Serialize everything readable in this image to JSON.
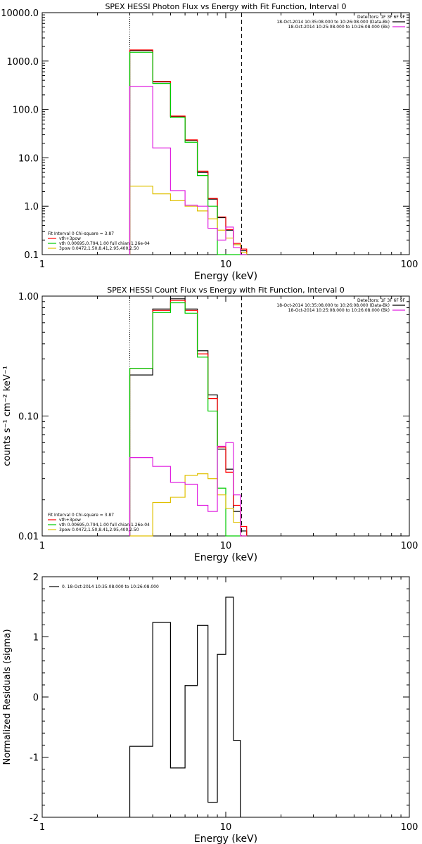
{
  "chart_data": [
    {
      "type": "line",
      "title": "SPEX HESSI Photon Flux vs Energy with Fit Function, Interval 0",
      "xlabel": "Energy (keV)",
      "ylabel": "",
      "x_scale": "log",
      "y_scale": "log",
      "xlim": [
        1,
        100
      ],
      "ylim": [
        0.1,
        10000
      ],
      "x_ticks": [
        1,
        10,
        100
      ],
      "x_tick_labels": [
        "1",
        "10",
        "100"
      ],
      "y_ticks": [
        0.1,
        1,
        10,
        100,
        1000,
        10000
      ],
      "y_tick_labels": [
        "0.1",
        "1.0",
        "10.0",
        "100.0",
        "1000.0",
        "10000.0"
      ],
      "bin_edges": [
        3.0,
        4.0,
        5.0,
        6.0,
        7.0,
        8.0,
        9.0,
        10.0,
        11.0,
        12.0,
        13.0
      ],
      "series": [
        {
          "name": "",
          "color": "#000000",
          "values": [
            1650,
            370,
            72,
            23,
            5.0,
            1.4,
            0.58,
            0.32,
            0.16,
            0.12
          ]
        },
        {
          "name": "vth+3pow",
          "color": "#ff0000",
          "values": [
            1700,
            380,
            73,
            23.5,
            5.3,
            1.45,
            0.6,
            0.33,
            0.17,
            0.13
          ]
        },
        {
          "name": "vth 0.00695,0.794,1.00  full chian 1.26e-04",
          "color": "#00cc00",
          "values": [
            1520,
            345,
            68,
            21,
            4.3,
            1.0,
            0.1,
            0.1,
            0.1,
            0.1
          ]
        },
        {
          "name": "3pow 0.0472,1.50,8.41,2.95,400,2.50",
          "color": "#e0c000",
          "values": [
            2.6,
            1.8,
            1.3,
            1.0,
            0.8,
            0.55,
            0.32,
            0.22,
            0.16,
            0.11
          ]
        },
        {
          "name": "",
          "color": "#e020e0",
          "values": [
            300,
            16,
            2.1,
            1.05,
            1.0,
            0.35,
            0.2,
            0.37,
            0.14,
            0.1
          ]
        }
      ],
      "vlines": [
        {
          "x": 3.0,
          "style": "dotted"
        },
        {
          "x": 12.2,
          "style": "dashed"
        }
      ],
      "legend_placement": "top-right",
      "legend_lines": [
        {
          "text": "Detectors: 1F 3F 6F 9F",
          "color": ""
        },
        {
          "text": "18-Oct-2014 10:35:08.000 to 10:26:08.000 (Data-Bk)",
          "color": "#000000"
        },
        {
          "text": "18-Oct-2014 10:25:08.000 to 10:26:08.000 (Bk)",
          "color": "#e020e0"
        }
      ],
      "fit_legend": [
        {
          "text": "Fit Interval 0   Chi-square = 3.87",
          "color": ""
        },
        {
          "text": "vth+3pow",
          "color": "#ff0000"
        },
        {
          "text": "vth 0.00695,0.794,1.00  full chian 1.26e-04",
          "color": "#00cc00"
        },
        {
          "text": "3pow 0.0472,1.50,8.41,2.95,400,2.50",
          "color": "#e0c000"
        }
      ]
    },
    {
      "type": "line",
      "title": "SPEX HESSI Count Flux vs Energy with Fit Function, Interval 0",
      "xlabel": "Energy (keV)",
      "ylabel": "counts s⁻¹ cm⁻² keV⁻¹",
      "x_scale": "log",
      "y_scale": "log",
      "xlim": [
        1,
        100
      ],
      "ylim": [
        0.01,
        1.0
      ],
      "x_ticks": [
        1,
        10,
        100
      ],
      "x_tick_labels": [
        "1",
        "10",
        "100"
      ],
      "y_ticks": [
        0.01,
        0.1,
        1.0
      ],
      "y_tick_labels": [
        "0.01",
        "0.10",
        "1.00"
      ],
      "bin_edges": [
        3.0,
        4.0,
        5.0,
        6.0,
        7.0,
        8.0,
        9.0,
        10.0,
        11.0,
        12.0,
        13.0
      ],
      "series": [
        {
          "name": "",
          "color": "#000000",
          "values": [
            0.22,
            0.78,
            0.95,
            0.78,
            0.35,
            0.15,
            0.053,
            0.036,
            0.016,
            0.011
          ]
        },
        {
          "name": "vth+3pow",
          "color": "#ff0000",
          "values": [
            0.25,
            0.76,
            0.92,
            0.76,
            0.33,
            0.14,
            0.055,
            0.034,
            0.018,
            0.012
          ]
        },
        {
          "name": "vth 0.00695,0.794,1.00  full chian 1.26e-04",
          "color": "#00cc00",
          "values": [
            0.25,
            0.73,
            0.88,
            0.72,
            0.31,
            0.11,
            0.025,
            0.01,
            0.01,
            0.01
          ]
        },
        {
          "name": "3pow 0.0472,1.50,8.41,2.95,400,2.50",
          "color": "#e0c000",
          "values": [
            0.01,
            0.019,
            0.021,
            0.032,
            0.033,
            0.03,
            0.022,
            0.017,
            0.013,
            0.01
          ]
        },
        {
          "name": "",
          "color": "#e020e0",
          "values": [
            0.045,
            0.038,
            0.028,
            0.027,
            0.018,
            0.016,
            0.056,
            0.06,
            0.022,
            0.01
          ]
        }
      ],
      "vlines": [
        {
          "x": 3.0,
          "style": "dotted"
        },
        {
          "x": 12.2,
          "style": "dashed"
        }
      ],
      "legend_placement": "top-right",
      "legend_lines": [
        {
          "text": "Detectors: 1F 3F 6F 9F",
          "color": ""
        },
        {
          "text": "18-Oct-2014 10:35:08.000 to 10:26:08.000 (Data-Bk)",
          "color": "#000000"
        },
        {
          "text": "18-Oct-2014 10:25:08.000 to 10:26:08.000 (Bk)",
          "color": "#e020e0"
        }
      ],
      "fit_legend": [
        {
          "text": "Fit Interval 0   Chi-square = 3.87",
          "color": ""
        },
        {
          "text": "vth+3pow",
          "color": "#ff0000"
        },
        {
          "text": "vth 0.00695,0.794,1.00  full chian 1.26e-04",
          "color": "#00cc00"
        },
        {
          "text": "3pow 0.0472,1.50,8.41,2.95,400,2.50",
          "color": "#e0c000"
        }
      ]
    },
    {
      "type": "line",
      "title": "",
      "xlabel": "Energy (keV)",
      "ylabel": "Normalized Residuals (sigma)",
      "x_scale": "log",
      "y_scale": "linear",
      "xlim": [
        1,
        100
      ],
      "ylim": [
        -2,
        2
      ],
      "x_ticks": [
        1,
        10,
        100
      ],
      "x_tick_labels": [
        "1",
        "10",
        "100"
      ],
      "y_ticks": [
        -2,
        -1,
        0,
        1,
        2
      ],
      "y_tick_labels": [
        "-2",
        "-1",
        "0",
        "1",
        "2"
      ],
      "bin_edges": [
        3.0,
        4.0,
        5.0,
        6.0,
        7.0,
        8.0,
        9.0,
        10.0,
        11.0,
        12.0
      ],
      "series": [
        {
          "name": "0. 18-Oct-2014 10:35:08.000 to 10:26:08.000",
          "color": "#000000",
          "values": [
            -0.82,
            1.24,
            -1.18,
            0.19,
            1.19,
            -1.75,
            0.71,
            1.66,
            -0.72
          ]
        }
      ],
      "vlines": [],
      "legend_placement": "top-left",
      "legend_lines": [
        {
          "text": "0. 18-Oct-2014 10:35:08.000 to 10:26:08.000",
          "color": "#000000"
        }
      ],
      "fit_legend": []
    }
  ]
}
